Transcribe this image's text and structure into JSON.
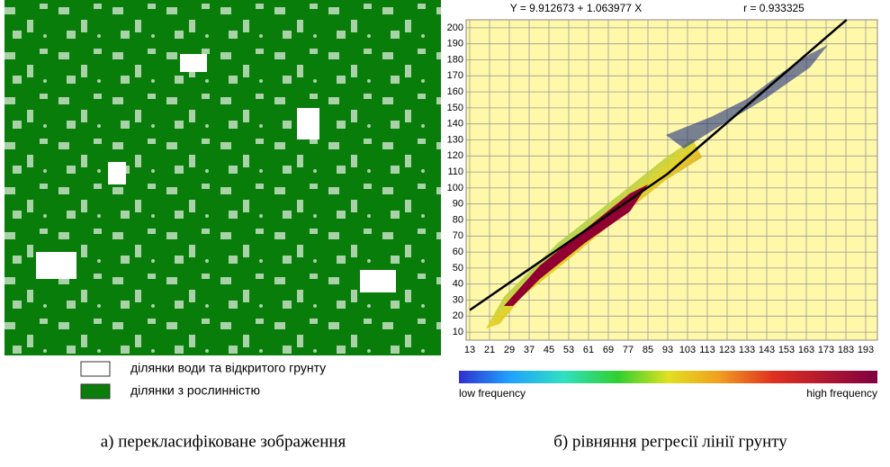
{
  "left_panel": {
    "legend": [
      {
        "label": "ділянки води та відкритого грунту",
        "color": "#ffffff"
      },
      {
        "label": "ділянки з рослинністю",
        "color": "#0a7d0a"
      }
    ],
    "caption": "а) перекласифіковане зображення"
  },
  "chart_data": {
    "type": "scatter",
    "title": "Y = 9.912673 + 1.063977 X",
    "subtitle": "r = 0.933325",
    "regression": {
      "intercept": 9.912673,
      "slope": 1.063977
    },
    "xticks": [
      13,
      21,
      29,
      37,
      45,
      53,
      61,
      69,
      77,
      85,
      93,
      103,
      113,
      123,
      133,
      143,
      153,
      163,
      173,
      183,
      193
    ],
    "ylim": [
      5,
      205
    ],
    "yticks": [
      10,
      20,
      30,
      40,
      50,
      60,
      70,
      80,
      90,
      100,
      110,
      120,
      130,
      140,
      150,
      160,
      170,
      180,
      190,
      200
    ],
    "grid": true,
    "colorbar": {
      "low_label": "low frequency",
      "high_label": "high frequency"
    },
    "caption": "б) рівняння регресії лінії грунту"
  }
}
